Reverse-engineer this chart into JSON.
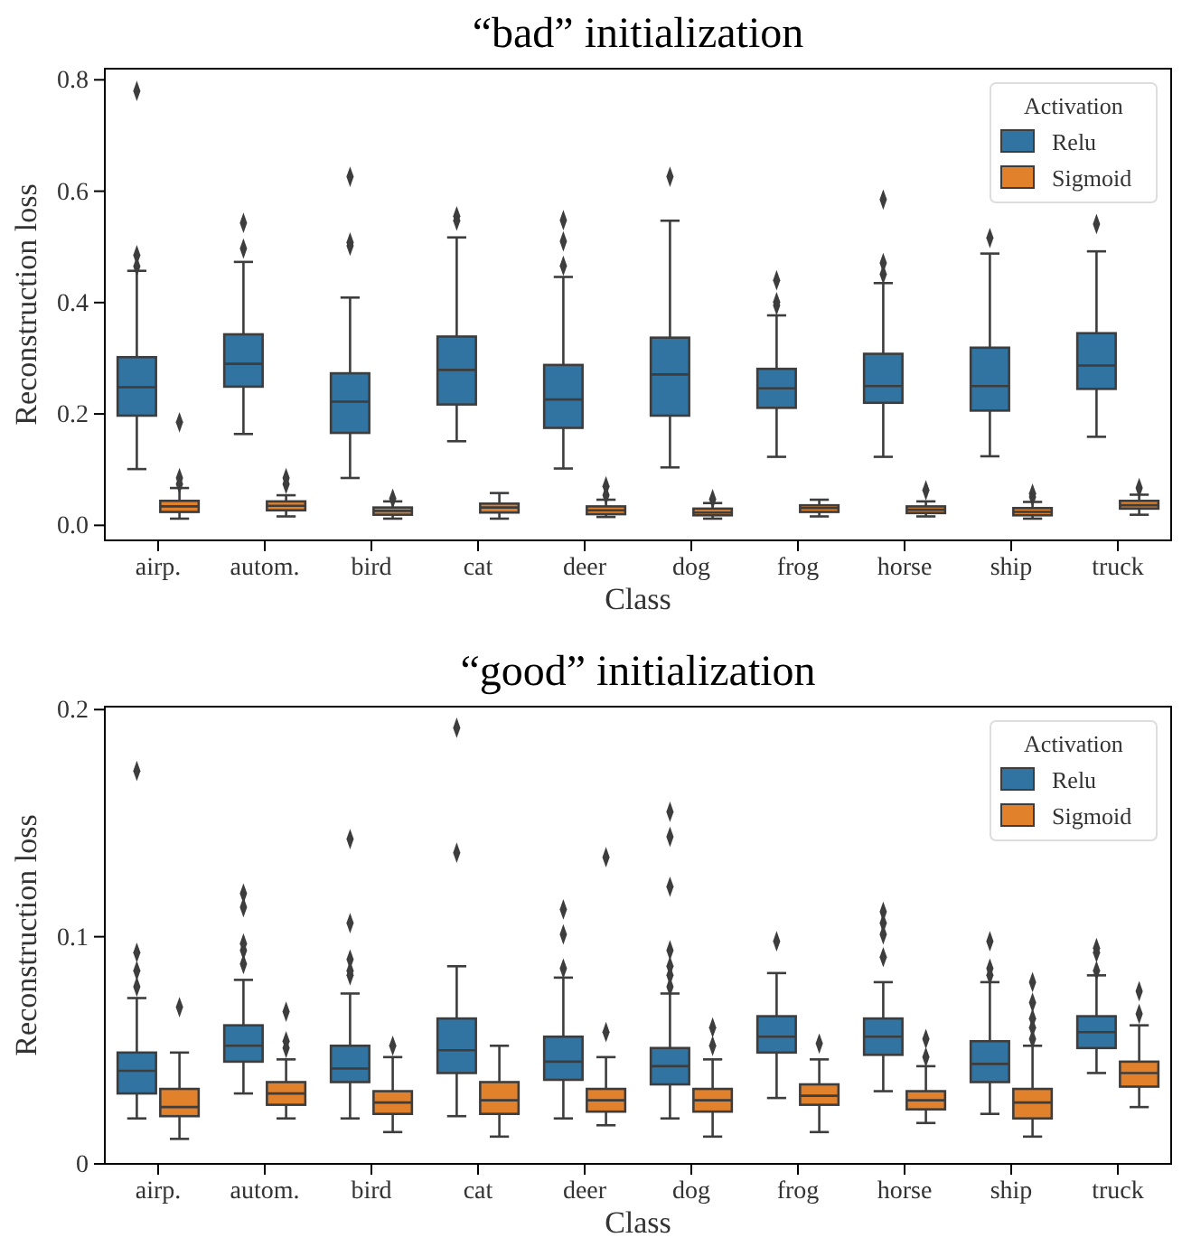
{
  "chart_data": [
    {
      "type": "box",
      "title": "“bad” initialization",
      "xlabel": "Class",
      "ylabel": "Reconstruction loss",
      "legend_title": "Activation",
      "legend": "top right",
      "marker": "diamond",
      "categories": [
        "airp.",
        "autom.",
        "bird",
        "cat",
        "deer",
        "dog",
        "frog",
        "horse",
        "ship",
        "truck"
      ],
      "ylim": [
        -0.027,
        0.82
      ],
      "yticks": [
        {
          "value": 0,
          "label": "0.0"
        },
        {
          "value": 0.2,
          "label": "0.2"
        },
        {
          "value": 0.4,
          "label": "0.4"
        },
        {
          "value": 0.6,
          "label": "0.6"
        },
        {
          "value": 0.8,
          "label": "0.8"
        }
      ],
      "series": [
        {
          "name": "Relu",
          "color": "#3274a1",
          "boxes": [
            {
              "low": 0.101,
              "q1": 0.197,
              "median": 0.248,
              "q3": 0.302,
              "high": 0.457,
              "outliers": [
                0.78,
                0.485,
                0.465
              ]
            },
            {
              "low": 0.164,
              "q1": 0.249,
              "median": 0.29,
              "q3": 0.343,
              "high": 0.473,
              "outliers": [
                0.497,
                0.543
              ]
            },
            {
              "low": 0.085,
              "q1": 0.166,
              "median": 0.222,
              "q3": 0.273,
              "high": 0.409,
              "outliers": [
                0.508,
                0.502,
                0.626
              ]
            },
            {
              "low": 0.151,
              "q1": 0.217,
              "median": 0.279,
              "q3": 0.339,
              "high": 0.517,
              "outliers": [
                0.555,
                0.547
              ]
            },
            {
              "low": 0.102,
              "q1": 0.175,
              "median": 0.226,
              "q3": 0.288,
              "high": 0.446,
              "outliers": [
                0.466,
                0.51,
                0.548
              ]
            },
            {
              "low": 0.104,
              "q1": 0.197,
              "median": 0.271,
              "q3": 0.337,
              "high": 0.547,
              "outliers": [
                0.626
              ]
            },
            {
              "low": 0.123,
              "q1": 0.211,
              "median": 0.246,
              "q3": 0.281,
              "high": 0.377,
              "outliers": [
                0.395,
                0.401,
                0.44
              ]
            },
            {
              "low": 0.123,
              "q1": 0.22,
              "median": 0.25,
              "q3": 0.308,
              "high": 0.435,
              "outliers": [
                0.451,
                0.471,
                0.585
              ]
            },
            {
              "low": 0.124,
              "q1": 0.206,
              "median": 0.25,
              "q3": 0.319,
              "high": 0.488,
              "outliers": [
                0.516
              ]
            },
            {
              "low": 0.159,
              "q1": 0.245,
              "median": 0.287,
              "q3": 0.345,
              "high": 0.492,
              "outliers": [
                0.541
              ]
            }
          ]
        },
        {
          "name": "Sigmoid",
          "color": "#e1812c",
          "boxes": [
            {
              "low": 0.012,
              "q1": 0.024,
              "median": 0.034,
              "q3": 0.044,
              "high": 0.067,
              "outliers": [
                0.074,
                0.085,
                0.185
              ]
            },
            {
              "low": 0.016,
              "q1": 0.027,
              "median": 0.035,
              "q3": 0.043,
              "high": 0.054,
              "outliers": [
                0.074,
                0.085
              ]
            },
            {
              "low": 0.012,
              "q1": 0.019,
              "median": 0.026,
              "q3": 0.032,
              "high": 0.043,
              "outliers": [
                0.048
              ]
            },
            {
              "low": 0.012,
              "q1": 0.023,
              "median": 0.032,
              "q3": 0.039,
              "high": 0.058
            },
            {
              "low": 0.015,
              "q1": 0.02,
              "median": 0.027,
              "q3": 0.034,
              "high": 0.046,
              "outliers": [
                0.054,
                0.07
              ]
            },
            {
              "low": 0.012,
              "q1": 0.018,
              "median": 0.023,
              "q3": 0.03,
              "high": 0.04,
              "outliers": [
                0.047
              ]
            },
            {
              "low": 0.016,
              "q1": 0.024,
              "median": 0.031,
              "q3": 0.036,
              "high": 0.046
            },
            {
              "low": 0.016,
              "q1": 0.022,
              "median": 0.028,
              "q3": 0.034,
              "high": 0.043,
              "outliers": [
                0.063
              ]
            },
            {
              "low": 0.012,
              "q1": 0.018,
              "median": 0.024,
              "q3": 0.031,
              "high": 0.042,
              "outliers": [
                0.051,
                0.057
              ]
            },
            {
              "low": 0.019,
              "q1": 0.03,
              "median": 0.036,
              "q3": 0.044,
              "high": 0.055,
              "outliers": [
                0.067
              ]
            }
          ]
        }
      ]
    },
    {
      "type": "box",
      "title": "“good” initialization",
      "xlabel": "Class",
      "ylabel": "Reconstruction loss",
      "legend_title": "Activation",
      "legend": "top right",
      "marker": "diamond",
      "categories": [
        "airp.",
        "autom.",
        "bird",
        "cat",
        "deer",
        "dog",
        "frog",
        "horse",
        "ship",
        "truck"
      ],
      "ylim": [
        0,
        0.2013
      ],
      "yticks": [
        0,
        0.1,
        0.2
      ],
      "series": [
        {
          "name": "Relu",
          "color": "#3274a1",
          "boxes": [
            {
              "low": 0.02,
              "q1": 0.031,
              "median": 0.041,
              "q3": 0.049,
              "high": 0.073,
              "outliers": [
                0.078,
                0.085,
                0.093,
                0.173
              ]
            },
            {
              "low": 0.031,
              "q1": 0.045,
              "median": 0.052,
              "q3": 0.061,
              "high": 0.081,
              "outliers": [
                0.088,
                0.094,
                0.097,
                0.113,
                0.119
              ]
            },
            {
              "low": 0.02,
              "q1": 0.036,
              "median": 0.042,
              "q3": 0.052,
              "high": 0.075,
              "outliers": [
                0.083,
                0.085,
                0.09,
                0.106,
                0.143
              ]
            },
            {
              "low": 0.021,
              "q1": 0.04,
              "median": 0.05,
              "q3": 0.064,
              "high": 0.087,
              "outliers": [
                0.137,
                0.192
              ]
            },
            {
              "low": 0.02,
              "q1": 0.037,
              "median": 0.045,
              "q3": 0.056,
              "high": 0.082,
              "outliers": [
                0.086,
                0.101,
                0.112
              ]
            },
            {
              "low": 0.02,
              "q1": 0.035,
              "median": 0.043,
              "q3": 0.051,
              "high": 0.075,
              "outliers": [
                0.078,
                0.083,
                0.087,
                0.094,
                0.122,
                0.144,
                0.155
              ]
            },
            {
              "low": 0.029,
              "q1": 0.049,
              "median": 0.056,
              "q3": 0.065,
              "high": 0.084,
              "outliers": [
                0.098
              ]
            },
            {
              "low": 0.032,
              "q1": 0.048,
              "median": 0.056,
              "q3": 0.064,
              "high": 0.08,
              "outliers": [
                0.091,
                0.101,
                0.106,
                0.111
              ]
            },
            {
              "low": 0.022,
              "q1": 0.036,
              "median": 0.044,
              "q3": 0.054,
              "high": 0.08,
              "outliers": [
                0.083,
                0.086,
                0.098
              ]
            },
            {
              "low": 0.04,
              "q1": 0.051,
              "median": 0.058,
              "q3": 0.065,
              "high": 0.083,
              "outliers": [
                0.085,
                0.093,
                0.095
              ]
            }
          ]
        },
        {
          "name": "Sigmoid",
          "color": "#e1812c",
          "boxes": [
            {
              "low": 0.011,
              "q1": 0.021,
              "median": 0.025,
              "q3": 0.033,
              "high": 0.049,
              "outliers": [
                0.069
              ]
            },
            {
              "low": 0.02,
              "q1": 0.026,
              "median": 0.031,
              "q3": 0.036,
              "high": 0.046,
              "outliers": [
                0.051,
                0.054,
                0.067
              ]
            },
            {
              "low": 0.014,
              "q1": 0.022,
              "median": 0.027,
              "q3": 0.032,
              "high": 0.047,
              "outliers": [
                0.052
              ]
            },
            {
              "low": 0.012,
              "q1": 0.022,
              "median": 0.028,
              "q3": 0.036,
              "high": 0.052
            },
            {
              "low": 0.017,
              "q1": 0.023,
              "median": 0.028,
              "q3": 0.033,
              "high": 0.047,
              "outliers": [
                0.058,
                0.135
              ]
            },
            {
              "low": 0.012,
              "q1": 0.023,
              "median": 0.028,
              "q3": 0.033,
              "high": 0.046,
              "outliers": [
                0.052,
                0.06
              ]
            },
            {
              "low": 0.014,
              "q1": 0.026,
              "median": 0.03,
              "q3": 0.035,
              "high": 0.046,
              "outliers": [
                0.053
              ]
            },
            {
              "low": 0.018,
              "q1": 0.024,
              "median": 0.028,
              "q3": 0.032,
              "high": 0.043,
              "outliers": [
                0.047,
                0.055
              ]
            },
            {
              "low": 0.012,
              "q1": 0.02,
              "median": 0.027,
              "q3": 0.033,
              "high": 0.052,
              "outliers": [
                0.055,
                0.06,
                0.064,
                0.071,
                0.08
              ]
            },
            {
              "low": 0.025,
              "q1": 0.034,
              "median": 0.04,
              "q3": 0.045,
              "high": 0.061,
              "outliers": [
                0.066,
                0.076
              ]
            }
          ]
        }
      ]
    }
  ]
}
